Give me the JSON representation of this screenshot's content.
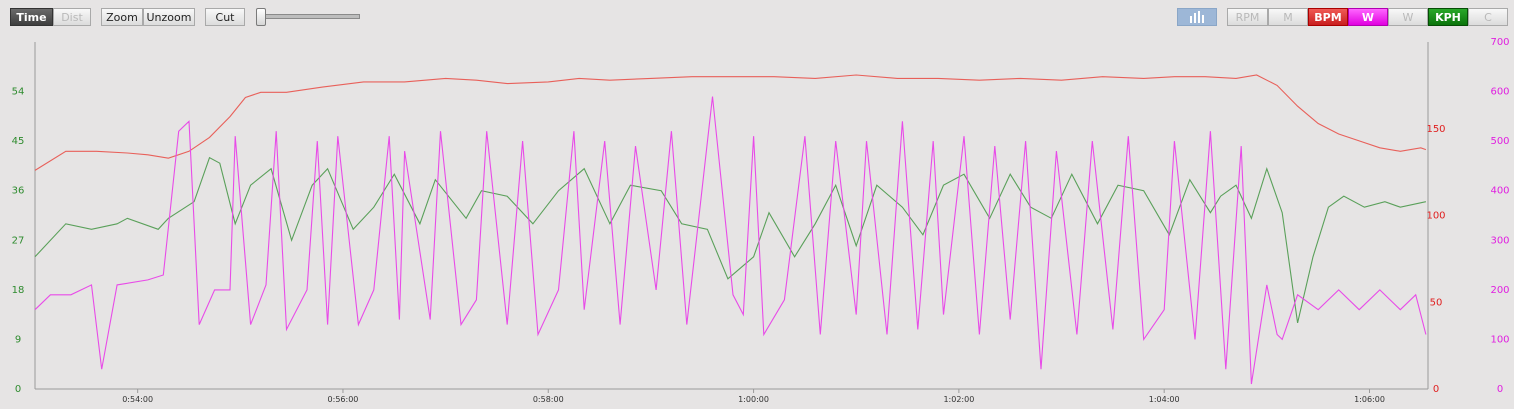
{
  "toolbar": {
    "time": "Time",
    "dist": "Dist",
    "zoom": "Zoom",
    "unzoom": "Unzoom",
    "cut": "Cut",
    "rpm": "RPM",
    "m": "M",
    "bpm": "BPM",
    "w_active": "W",
    "w": "W",
    "kph": "KPH",
    "c": "C"
  },
  "chart_data": {
    "type": "line",
    "x_range": [
      "0:53:00",
      "1:06:34"
    ],
    "x_ticks": [
      "0:54:00",
      "0:56:00",
      "0:58:00",
      "1:00:00",
      "1:02:00",
      "1:04:00",
      "1:06:00"
    ],
    "x_tick_minutes": [
      54,
      56,
      58,
      60,
      62,
      64,
      66
    ],
    "axes": {
      "speed": {
        "ticks": [
          "0",
          "9",
          "18",
          "27",
          "36",
          "45",
          "54"
        ],
        "range": [
          0,
          63
        ],
        "color": "#2e8b2e"
      },
      "bpm": {
        "ticks": [
          "0",
          "50",
          "100",
          "150"
        ],
        "range": [
          0,
          200
        ],
        "color": "#e02020"
      },
      "power": {
        "ticks": [
          "0",
          "100",
          "200",
          "300",
          "400",
          "500",
          "600",
          "700"
        ],
        "range": [
          0,
          700
        ],
        "color": "#e020e0"
      }
    },
    "grid": false,
    "series": [
      {
        "name": "BPM",
        "axis": "bpm",
        "color": "#e8605a",
        "x": [
          53.0,
          53.3,
          53.6,
          53.9,
          54.1,
          54.3,
          54.5,
          54.7,
          54.9,
          55.05,
          55.2,
          55.45,
          55.8,
          56.2,
          56.6,
          57.0,
          57.3,
          57.6,
          58.0,
          58.3,
          58.6,
          59.0,
          59.4,
          59.8,
          60.2,
          60.6,
          61.0,
          61.4,
          61.8,
          62.2,
          62.6,
          63.0,
          63.4,
          63.8,
          64.1,
          64.4,
          64.7,
          64.9,
          65.1,
          65.3,
          65.5,
          65.7,
          65.9,
          66.1,
          66.3,
          66.5,
          66.55
        ],
        "y": [
          126,
          137,
          137,
          136,
          135,
          133,
          137,
          145,
          157,
          168,
          171,
          171,
          174,
          177,
          177,
          179,
          178,
          176,
          177,
          179,
          178,
          179,
          180,
          180,
          180,
          179,
          181,
          179,
          179,
          178,
          179,
          178,
          180,
          179,
          180,
          180,
          179,
          181,
          175,
          163,
          153,
          147,
          143,
          139,
          137,
          139,
          138
        ]
      },
      {
        "name": "KPH",
        "axis": "speed",
        "color": "#5aa05a",
        "x": [
          53.0,
          53.3,
          53.55,
          53.8,
          53.9,
          54.2,
          54.3,
          54.55,
          54.7,
          54.8,
          54.95,
          55.1,
          55.3,
          55.5,
          55.7,
          55.85,
          56.1,
          56.3,
          56.5,
          56.75,
          56.9,
          57.2,
          57.35,
          57.6,
          57.85,
          58.1,
          58.35,
          58.6,
          58.8,
          59.1,
          59.3,
          59.55,
          59.75,
          60.0,
          60.15,
          60.4,
          60.6,
          60.8,
          61.0,
          61.2,
          61.45,
          61.65,
          61.85,
          62.05,
          62.3,
          62.5,
          62.7,
          62.9,
          63.1,
          63.35,
          63.55,
          63.8,
          64.05,
          64.25,
          64.45,
          64.55,
          64.7,
          64.85,
          65.0,
          65.15,
          65.3,
          65.45,
          65.6,
          65.75,
          65.95,
          66.15,
          66.3,
          66.55
        ],
        "y": [
          24,
          30,
          29,
          30,
          31,
          29,
          31,
          34,
          42,
          41,
          30,
          37,
          40,
          27,
          37,
          40,
          29,
          33,
          39,
          30,
          38,
          31,
          36,
          35,
          30,
          36,
          40,
          30,
          37,
          36,
          30,
          29,
          20,
          24,
          32,
          24,
          30,
          37,
          26,
          37,
          33,
          28,
          37,
          39,
          31,
          39,
          33,
          31,
          39,
          30,
          37,
          36,
          28,
          38,
          32,
          35,
          37,
          31,
          40,
          32,
          12,
          24,
          33,
          35,
          33,
          34,
          33,
          34
        ]
      },
      {
        "name": "W",
        "axis": "power",
        "color": "#e84be8",
        "x": [
          53.0,
          53.15,
          53.35,
          53.55,
          53.65,
          53.8,
          54.1,
          54.25,
          54.4,
          54.5,
          54.6,
          54.75,
          54.9,
          54.95,
          55.1,
          55.25,
          55.35,
          55.45,
          55.65,
          55.75,
          55.85,
          55.95,
          56.15,
          56.3,
          56.45,
          56.55,
          56.6,
          56.85,
          56.95,
          57.15,
          57.3,
          57.4,
          57.6,
          57.75,
          57.9,
          58.1,
          58.25,
          58.35,
          58.55,
          58.7,
          58.85,
          59.05,
          59.2,
          59.35,
          59.6,
          59.8,
          59.9,
          60.0,
          60.1,
          60.3,
          60.5,
          60.65,
          60.8,
          61.0,
          61.1,
          61.3,
          61.45,
          61.6,
          61.75,
          61.85,
          62.05,
          62.2,
          62.35,
          62.5,
          62.65,
          62.8,
          62.95,
          63.15,
          63.3,
          63.5,
          63.65,
          63.8,
          64.0,
          64.1,
          64.3,
          64.45,
          64.6,
          64.75,
          64.85,
          65.0,
          65.1,
          65.15,
          65.3,
          65.5,
          65.7,
          65.9,
          66.1,
          66.3,
          66.45,
          66.55
        ],
        "y": [
          160,
          190,
          190,
          210,
          40,
          210,
          220,
          230,
          520,
          540,
          130,
          200,
          200,
          510,
          130,
          210,
          520,
          120,
          200,
          500,
          130,
          510,
          130,
          200,
          510,
          140,
          480,
          140,
          520,
          130,
          180,
          520,
          130,
          500,
          110,
          200,
          520,
          160,
          500,
          130,
          490,
          200,
          520,
          130,
          590,
          190,
          150,
          510,
          110,
          180,
          510,
          110,
          500,
          150,
          500,
          110,
          540,
          120,
          500,
          150,
          510,
          110,
          490,
          140,
          500,
          40,
          480,
          110,
          500,
          120,
          510,
          100,
          160,
          500,
          100,
          520,
          40,
          490,
          10,
          210,
          110,
          100,
          190,
          160,
          200,
          160,
          200,
          160,
          190,
          110
        ]
      }
    ]
  }
}
